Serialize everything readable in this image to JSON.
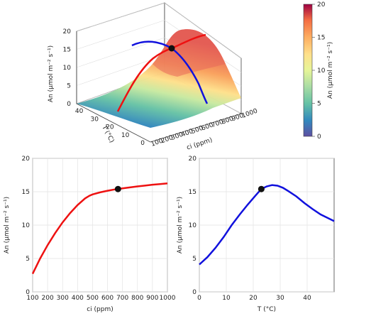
{
  "chart_data": [
    {
      "type": "surface",
      "xlabel": "ci (ppm)",
      "ylabel": "T (°C)",
      "zlabel": "An (μmol m⁻² s⁻¹)",
      "x_ticks": [
        100,
        200,
        300,
        400,
        500,
        600,
        700,
        800,
        900,
        1000
      ],
      "y_ticks": [
        0,
        10,
        20,
        30,
        40
      ],
      "z_ticks": [
        0,
        5,
        10,
        15,
        20
      ],
      "xlim": [
        100,
        1000
      ],
      "ylim": [
        0,
        48
      ],
      "zlim": [
        0,
        20
      ],
      "marker": {
        "ci": 670,
        "T": 23,
        "An": 15.4
      },
      "colorbar": {
        "label": "An (μmol m⁻² s⁻¹)",
        "min": 0,
        "max": 20,
        "ticks": [
          0,
          5,
          10,
          15,
          20
        ]
      }
    },
    {
      "type": "line",
      "xlabel": "ci (ppm)",
      "ylabel": "An (μmol m⁻² s⁻¹)",
      "xlim": [
        100,
        1000
      ],
      "ylim": [
        0,
        20
      ],
      "x_ticks": [
        100,
        200,
        300,
        400,
        500,
        600,
        700,
        800,
        900,
        1000
      ],
      "y_ticks": [
        0,
        5,
        10,
        15,
        20
      ],
      "grid": true,
      "series": [
        {
          "color": "#ee1111",
          "x": [
            100,
            150,
            200,
            250,
            300,
            350,
            400,
            450,
            480,
            500,
            550,
            600,
            650,
            700,
            750,
            800,
            850,
            900,
            950,
            1000
          ],
          "y": [
            2.7,
            5.0,
            7.0,
            8.8,
            10.4,
            11.8,
            13.0,
            14.0,
            14.4,
            14.6,
            14.9,
            15.15,
            15.35,
            15.5,
            15.65,
            15.8,
            15.92,
            16.05,
            16.15,
            16.25
          ]
        }
      ],
      "marker": {
        "x": 670,
        "y": 15.4
      }
    },
    {
      "type": "line",
      "xlabel": "T (°C)",
      "ylabel": "An (μmol m⁻² s⁻¹)",
      "xlim": [
        0,
        50
      ],
      "ylim": [
        0,
        20
      ],
      "x_ticks": [
        0,
        10,
        20,
        30,
        40
      ],
      "y_ticks": [
        0,
        5,
        10,
        15,
        20
      ],
      "grid": true,
      "series": [
        {
          "color": "#1111dd",
          "x": [
            0,
            3,
            6,
            9,
            12,
            15,
            18,
            21,
            23,
            25,
            27,
            29,
            31,
            33,
            36,
            39,
            42,
            45,
            48,
            50
          ],
          "y": [
            4.1,
            5.2,
            6.6,
            8.2,
            10.0,
            11.6,
            13.1,
            14.5,
            15.4,
            15.8,
            16.0,
            15.9,
            15.6,
            15.1,
            14.3,
            13.3,
            12.4,
            11.6,
            11.0,
            10.6
          ]
        }
      ],
      "marker": {
        "x": 23,
        "y": 15.4
      }
    }
  ]
}
